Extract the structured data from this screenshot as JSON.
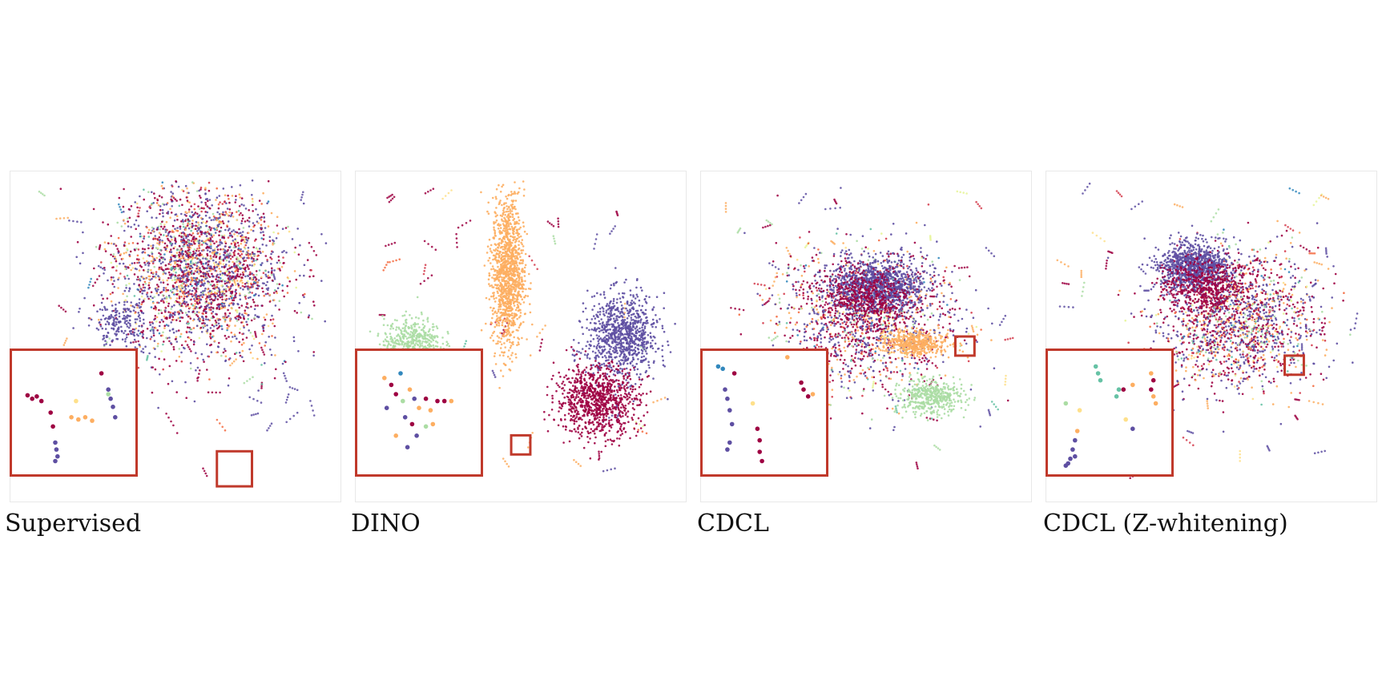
{
  "figure": {
    "captions": [
      "Supervised",
      "DINO",
      "CDCL",
      "CDCL (Z-whitening)"
    ]
  },
  "colors": {
    "classes": [
      "#5e4fa2",
      "#9e0142",
      "#fdae61",
      "#abdda4",
      "#d53e4f",
      "#f46d43",
      "#3288bd",
      "#66c2a5",
      "#fee08b",
      "#e6f598"
    ],
    "highlight_box": "#c0392b",
    "panel_border": "#e8e8e8"
  },
  "chart_data": [
    {
      "type": "scatter",
      "title": "Supervised",
      "xlim": [
        0,
        100
      ],
      "ylim": [
        0,
        100
      ],
      "grid": false,
      "legend": "none",
      "clusters": [
        {
          "class": "mixed-all",
          "center": [
            58,
            70
          ],
          "spread": [
            26,
            25
          ],
          "count": 2600
        },
        {
          "class": "purple",
          "center": [
            32,
            54
          ],
          "spread": [
            10,
            7
          ],
          "count": 180
        }
      ],
      "zoom_box": {
        "x": [
          63,
          74
        ],
        "y": [
          3,
          14
        ]
      },
      "inset": "bottom-left",
      "inset_points": [
        {
          "x": 10,
          "y": 65,
          "class": "red"
        },
        {
          "x": 14,
          "y": 62,
          "class": "red"
        },
        {
          "x": 18,
          "y": 64,
          "class": "red"
        },
        {
          "x": 22,
          "y": 60,
          "class": "red"
        },
        {
          "x": 30,
          "y": 50,
          "class": "red"
        },
        {
          "x": 32,
          "y": 38,
          "class": "red"
        },
        {
          "x": 34,
          "y": 24,
          "class": "purple"
        },
        {
          "x": 35,
          "y": 18,
          "class": "purple"
        },
        {
          "x": 36,
          "y": 12,
          "class": "purple"
        },
        {
          "x": 34,
          "y": 8,
          "class": "purple"
        },
        {
          "x": 48,
          "y": 46,
          "class": "orange"
        },
        {
          "x": 54,
          "y": 44,
          "class": "orange"
        },
        {
          "x": 60,
          "y": 46,
          "class": "orange"
        },
        {
          "x": 66,
          "y": 43,
          "class": "orange"
        },
        {
          "x": 52,
          "y": 60,
          "class": "yellow"
        },
        {
          "x": 80,
          "y": 70,
          "class": "purple"
        },
        {
          "x": 82,
          "y": 62,
          "class": "purple"
        },
        {
          "x": 84,
          "y": 55,
          "class": "purple"
        },
        {
          "x": 86,
          "y": 46,
          "class": "purple"
        },
        {
          "x": 74,
          "y": 84,
          "class": "red"
        },
        {
          "x": 80,
          "y": 66,
          "class": "green"
        }
      ]
    },
    {
      "type": "scatter",
      "title": "DINO",
      "xlim": [
        0,
        100
      ],
      "ylim": [
        0,
        100
      ],
      "grid": false,
      "legend": "none",
      "clusters": [
        {
          "class": "orange",
          "center": [
            46,
            70
          ],
          "spread": [
            5,
            24
          ],
          "count": 1200
        },
        {
          "class": "green",
          "center": [
            16,
            48
          ],
          "spread": [
            9,
            8
          ],
          "count": 500
        },
        {
          "class": "purple",
          "center": [
            82,
            50
          ],
          "spread": [
            11,
            13
          ],
          "count": 900
        },
        {
          "class": "red",
          "center": [
            74,
            30
          ],
          "spread": [
            13,
            11
          ],
          "count": 900
        }
      ],
      "zoom_box": {
        "x": [
          47,
          53
        ],
        "y": [
          13,
          19
        ]
      },
      "inset": "bottom-left",
      "inset_points": [
        {
          "x": 20,
          "y": 80,
          "class": "orange"
        },
        {
          "x": 26,
          "y": 74,
          "class": "red"
        },
        {
          "x": 30,
          "y": 66,
          "class": "red"
        },
        {
          "x": 36,
          "y": 60,
          "class": "green"
        },
        {
          "x": 42,
          "y": 70,
          "class": "orange"
        },
        {
          "x": 46,
          "y": 62,
          "class": "purple"
        },
        {
          "x": 50,
          "y": 54,
          "class": "orange"
        },
        {
          "x": 56,
          "y": 62,
          "class": "red"
        },
        {
          "x": 60,
          "y": 52,
          "class": "orange"
        },
        {
          "x": 66,
          "y": 60,
          "class": "red"
        },
        {
          "x": 72,
          "y": 60,
          "class": "red"
        },
        {
          "x": 78,
          "y": 60,
          "class": "orange"
        },
        {
          "x": 38,
          "y": 46,
          "class": "purple"
        },
        {
          "x": 44,
          "y": 40,
          "class": "red"
        },
        {
          "x": 48,
          "y": 30,
          "class": "purple"
        },
        {
          "x": 40,
          "y": 20,
          "class": "purple"
        },
        {
          "x": 30,
          "y": 30,
          "class": "orange"
        },
        {
          "x": 56,
          "y": 38,
          "class": "green"
        },
        {
          "x": 34,
          "y": 84,
          "class": "blue"
        },
        {
          "x": 22,
          "y": 54,
          "class": "purple"
        },
        {
          "x": 62,
          "y": 40,
          "class": "orange"
        }
      ]
    },
    {
      "type": "scatter",
      "title": "CDCL",
      "xlim": [
        0,
        100
      ],
      "ylim": [
        0,
        100
      ],
      "grid": false,
      "legend": "none",
      "clusters": [
        {
          "class": "mixed-all",
          "center": [
            50,
            55
          ],
          "spread": [
            28,
            22
          ],
          "count": 1400
        },
        {
          "class": "purple",
          "center": [
            54,
            66
          ],
          "spread": [
            14,
            8
          ],
          "count": 1000
        },
        {
          "class": "red",
          "center": [
            50,
            62
          ],
          "spread": [
            14,
            9
          ],
          "count": 500
        },
        {
          "class": "orange",
          "center": [
            66,
            48
          ],
          "spread": [
            10,
            4
          ],
          "count": 450
        },
        {
          "class": "green",
          "center": [
            70,
            31
          ],
          "spread": [
            10,
            5
          ],
          "count": 450
        }
      ],
      "zoom_box": {
        "x": [
          78,
          84
        ],
        "y": [
          44,
          50
        ]
      },
      "inset": "bottom-left",
      "inset_points": [
        {
          "x": 10,
          "y": 90,
          "class": "blue"
        },
        {
          "x": 14,
          "y": 88,
          "class": "blue"
        },
        {
          "x": 24,
          "y": 84,
          "class": "red"
        },
        {
          "x": 16,
          "y": 70,
          "class": "purple"
        },
        {
          "x": 18,
          "y": 62,
          "class": "purple"
        },
        {
          "x": 20,
          "y": 52,
          "class": "purple"
        },
        {
          "x": 22,
          "y": 40,
          "class": "purple"
        },
        {
          "x": 20,
          "y": 24,
          "class": "purple"
        },
        {
          "x": 18,
          "y": 18,
          "class": "purple"
        },
        {
          "x": 44,
          "y": 36,
          "class": "red"
        },
        {
          "x": 46,
          "y": 26,
          "class": "red"
        },
        {
          "x": 46,
          "y": 16,
          "class": "red"
        },
        {
          "x": 48,
          "y": 8,
          "class": "red"
        },
        {
          "x": 82,
          "y": 76,
          "class": "red"
        },
        {
          "x": 84,
          "y": 70,
          "class": "red"
        },
        {
          "x": 88,
          "y": 64,
          "class": "red"
        },
        {
          "x": 92,
          "y": 66,
          "class": "orange"
        },
        {
          "x": 70,
          "y": 98,
          "class": "orange"
        },
        {
          "x": 40,
          "y": 58,
          "class": "yellow"
        }
      ]
    },
    {
      "type": "scatter",
      "title": "CDCL (Z-whitening)",
      "xlim": [
        0,
        100
      ],
      "ylim": [
        0,
        100
      ],
      "grid": false,
      "legend": "none",
      "clusters": [
        {
          "class": "mixed-all",
          "center": [
            58,
            55
          ],
          "spread": [
            25,
            21
          ],
          "count": 1700
        },
        {
          "class": "purple",
          "center": [
            44,
            72
          ],
          "spread": [
            11,
            7
          ],
          "count": 900
        },
        {
          "class": "red",
          "center": [
            48,
            66
          ],
          "spread": [
            13,
            8
          ],
          "count": 500
        }
      ],
      "zoom_box": {
        "x": [
          73,
          79
        ],
        "y": [
          38,
          44
        ]
      },
      "inset": "bottom-left",
      "inset_points": [
        {
          "x": 38,
          "y": 90,
          "class": "teal"
        },
        {
          "x": 40,
          "y": 84,
          "class": "teal"
        },
        {
          "x": 42,
          "y": 78,
          "class": "teal"
        },
        {
          "x": 56,
          "y": 64,
          "class": "teal"
        },
        {
          "x": 58,
          "y": 70,
          "class": "teal"
        },
        {
          "x": 62,
          "y": 70,
          "class": "red"
        },
        {
          "x": 70,
          "y": 74,
          "class": "orange"
        },
        {
          "x": 86,
          "y": 84,
          "class": "orange"
        },
        {
          "x": 88,
          "y": 78,
          "class": "red"
        },
        {
          "x": 86,
          "y": 70,
          "class": "red"
        },
        {
          "x": 88,
          "y": 64,
          "class": "orange"
        },
        {
          "x": 90,
          "y": 58,
          "class": "orange"
        },
        {
          "x": 22,
          "y": 34,
          "class": "orange"
        },
        {
          "x": 20,
          "y": 26,
          "class": "purple"
        },
        {
          "x": 18,
          "y": 18,
          "class": "purple"
        },
        {
          "x": 20,
          "y": 12,
          "class": "purple"
        },
        {
          "x": 16,
          "y": 10,
          "class": "purple"
        },
        {
          "x": 14,
          "y": 6,
          "class": "purple"
        },
        {
          "x": 12,
          "y": 4,
          "class": "purple"
        },
        {
          "x": 12,
          "y": 58,
          "class": "green"
        },
        {
          "x": 24,
          "y": 52,
          "class": "yellow"
        },
        {
          "x": 70,
          "y": 36,
          "class": "purple"
        },
        {
          "x": 64,
          "y": 44,
          "class": "yellow"
        }
      ]
    }
  ]
}
